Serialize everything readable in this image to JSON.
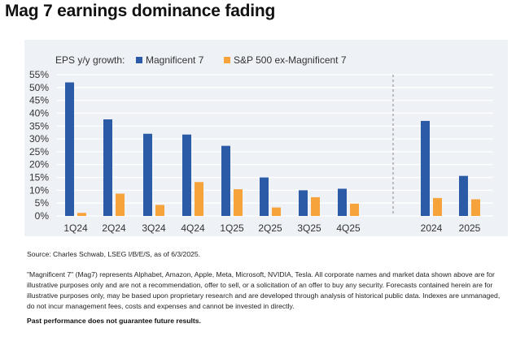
{
  "title": "Mag 7 earnings dominance fading",
  "legend": {
    "label": "EPS y/y growth:",
    "series1": "Magnificent 7",
    "series2": "S&P 500 ex-Magnificent 7"
  },
  "colors": {
    "mag7": "#2b5aa6",
    "ex_mag7": "#f7a33c",
    "grid": "#ffffff",
    "divider": "#888888"
  },
  "source": "Source: Charles Schwab, LSEG I/B/E/S, as of 6/3/2025.",
  "disclaimer": "\"Magnificent 7\" (Mag7) represents Alphabet, Amazon, Apple, Meta, Microsoft, NVIDIA, Tesla. All corporate names and market data shown above are for illustrative purposes only and are not a recommendation, offer to sell, or a solicitation of an offer to buy any security. Forecasts contained herein are for illustrative purposes only, may be based upon proprietary research and are developed through analysis of historical public data. Indexes are unmanaged, do not incur management fees, costs and expenses and cannot be invested in directly.",
  "disclaimer_bold": "Past performance does not guarantee future results.",
  "chart_data": {
    "type": "bar",
    "title": "Mag 7 earnings dominance fading",
    "ylabel": "EPS y/y growth:",
    "ylim": [
      0,
      55
    ],
    "yticks": [
      "0%",
      "5%",
      "10%",
      "15%",
      "20%",
      "25%",
      "30%",
      "35%",
      "40%",
      "45%",
      "50%",
      "55%"
    ],
    "grid": true,
    "legend_position": "top",
    "categories": [
      "1Q24",
      "2Q24",
      "3Q24",
      "4Q24",
      "1Q25",
      "2Q25",
      "3Q25",
      "4Q25",
      "2024",
      "2025"
    ],
    "series": [
      {
        "name": "Magnificent 7",
        "values": [
          52.0,
          37.6,
          32.0,
          31.7,
          27.3,
          15.0,
          10.0,
          10.6,
          37.0,
          15.6
        ]
      },
      {
        "name": "S&P 500 ex-Magnificent 7",
        "values": [
          1.2,
          8.7,
          4.3,
          13.2,
          10.4,
          3.3,
          7.3,
          4.8,
          7.0,
          6.5
        ]
      }
    ]
  }
}
